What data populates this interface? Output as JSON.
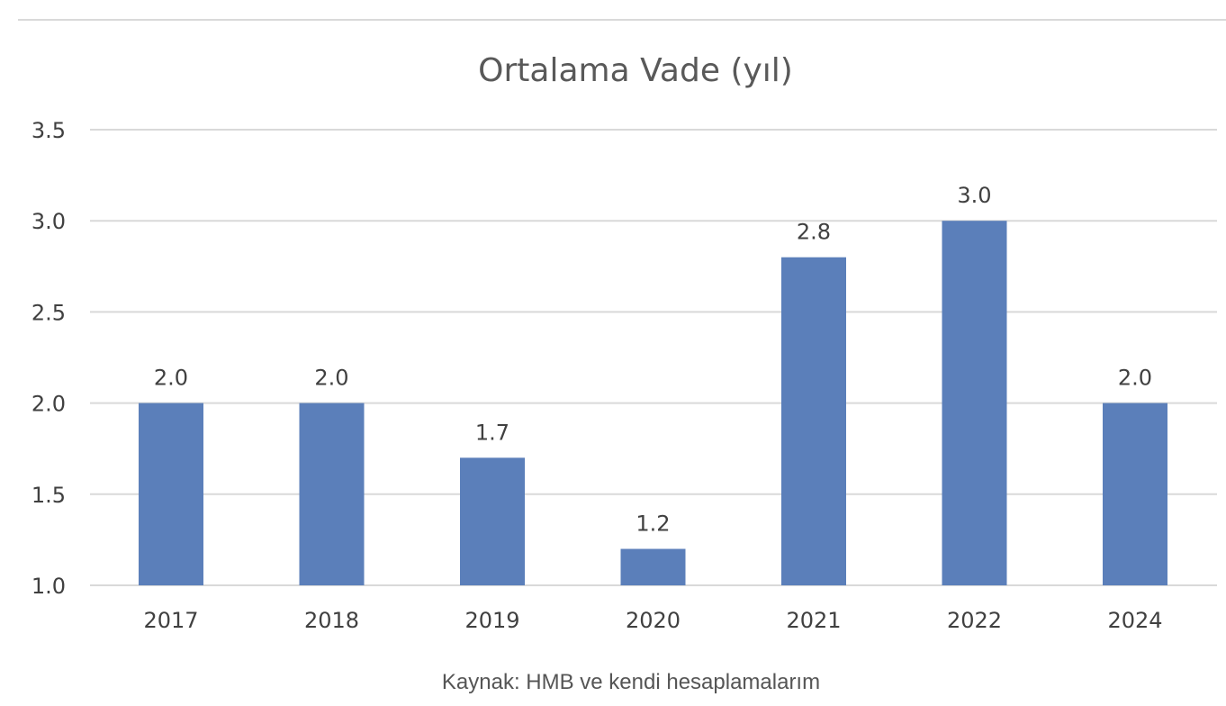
{
  "chart_data": {
    "type": "bar",
    "title": "Ortalama Vade (yıl)",
    "categories": [
      "2017",
      "2018",
      "2019",
      "2020",
      "2021",
      "2022",
      "2024"
    ],
    "values": [
      2.0,
      2.0,
      1.7,
      1.2,
      2.8,
      3.0,
      2.0
    ],
    "data_labels": [
      "2.0",
      "2.0",
      "1.7",
      "1.2",
      "2.8",
      "3.0",
      "2.0"
    ],
    "xlabel": "",
    "ylabel": "",
    "ylim": [
      1.0,
      3.5
    ],
    "yticks": [
      1.0,
      1.5,
      2.0,
      2.5,
      3.0,
      3.5
    ],
    "ytick_labels": [
      "1.0",
      "1.5",
      "2.0",
      "2.5",
      "3.0",
      "3.5"
    ],
    "grid": true,
    "legend": "none",
    "colors": {
      "bar": "#5b7fba",
      "grid": "#d9d9d9",
      "text": "#404040",
      "title": "#595959"
    }
  },
  "caption": "Kaynak: HMB ve kendi hesaplamalarım"
}
